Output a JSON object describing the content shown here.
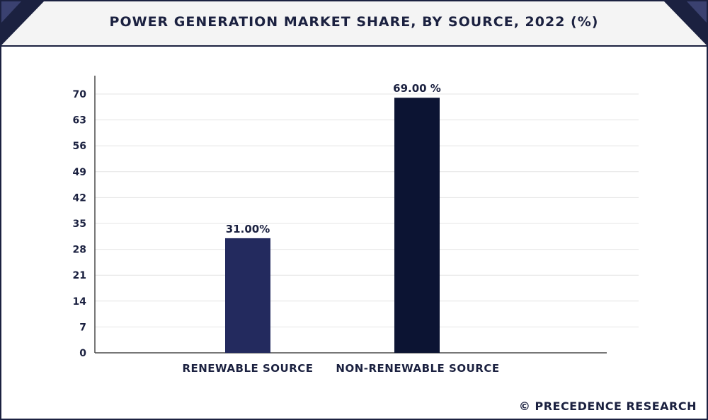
{
  "header": {
    "title": "POWER GENERATION MARKET SHARE, BY SOURCE, 2022 (%)"
  },
  "footer": {
    "source": "© PRECEDENCE RESEARCH"
  },
  "colors": {
    "frame": "#1b2140",
    "grid": "#e4e4e4",
    "axis": "#4a4a4a"
  },
  "chart_data": {
    "type": "bar",
    "title": "POWER GENERATION MARKET SHARE, BY SOURCE, 2022 (%)",
    "xlabel": "",
    "ylabel": "",
    "ylim": [
      0,
      70
    ],
    "yticks": [
      0,
      7,
      14,
      21,
      28,
      35,
      42,
      49,
      56,
      63,
      70
    ],
    "grid": true,
    "legend": "none",
    "categories": [
      "RENEWABLE SOURCE",
      "NON-RENEWABLE SOURCE"
    ],
    "values": [
      31,
      69
    ],
    "data_labels": [
      "31.00%",
      "69.00 %"
    ],
    "bar_colors": [
      "#232a5e",
      "#0c1433"
    ]
  }
}
